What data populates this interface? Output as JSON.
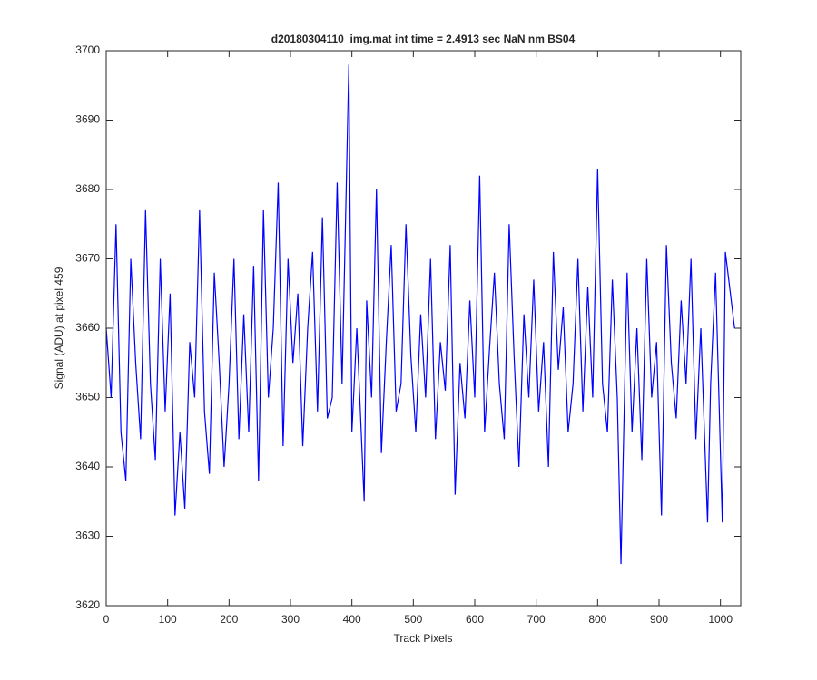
{
  "chart_data": {
    "type": "line",
    "title": "d20180304110_img.mat int time = 2.4913 sec  NaN nm BS04",
    "xlabel": "Track Pixels",
    "ylabel": "Signal (ADU) at pixel 459",
    "color": "#0000ff",
    "xlim": [
      0,
      1033
    ],
    "ylim": [
      3620,
      3700
    ],
    "xticks": [
      0,
      100,
      200,
      300,
      400,
      500,
      600,
      700,
      800,
      900,
      1000
    ],
    "yticks": [
      3620,
      3630,
      3640,
      3650,
      3660,
      3670,
      3680,
      3690,
      3700
    ],
    "x": [
      0,
      8,
      16,
      24,
      32,
      40,
      48,
      56,
      64,
      72,
      80,
      88,
      96,
      104,
      112,
      120,
      128,
      136,
      144,
      152,
      160,
      168,
      176,
      184,
      192,
      200,
      208,
      216,
      224,
      232,
      240,
      248,
      256,
      264,
      272,
      280,
      288,
      296,
      304,
      312,
      320,
      328,
      336,
      344,
      352,
      360,
      368,
      376,
      384,
      395,
      400,
      408,
      420,
      424,
      432,
      440,
      448,
      456,
      464,
      472,
      480,
      488,
      496,
      504,
      512,
      520,
      528,
      536,
      544,
      552,
      560,
      568,
      576,
      584,
      592,
      600,
      608,
      616,
      624,
      632,
      640,
      648,
      656,
      664,
      672,
      680,
      688,
      696,
      704,
      712,
      720,
      728,
      736,
      744,
      752,
      760,
      768,
      776,
      784,
      792,
      800,
      808,
      816,
      824,
      832,
      838,
      848,
      856,
      864,
      872,
      880,
      888,
      896,
      904,
      912,
      920,
      928,
      936,
      944,
      952,
      960,
      968,
      979,
      984,
      992,
      1003,
      1008,
      1023
    ],
    "values": [
      3660,
      3650,
      3675,
      3645,
      3638,
      3670,
      3655,
      3644,
      3677,
      3652,
      3641,
      3670,
      3648,
      3665,
      3633,
      3645,
      3634,
      3658,
      3650,
      3677,
      3648,
      3639,
      3668,
      3655,
      3640,
      3652,
      3670,
      3644,
      3662,
      3645,
      3669,
      3638,
      3677,
      3650,
      3660,
      3681,
      3643,
      3670,
      3655,
      3665,
      3643,
      3660,
      3671,
      3648,
      3676,
      3647,
      3650,
      3681,
      3652,
      3698,
      3645,
      3660,
      3635,
      3664,
      3650,
      3680,
      3642,
      3658,
      3672,
      3648,
      3652,
      3675,
      3656,
      3645,
      3662,
      3650,
      3670,
      3644,
      3658,
      3651,
      3672,
      3636,
      3655,
      3647,
      3664,
      3650,
      3682,
      3645,
      3657,
      3668,
      3652,
      3644,
      3675,
      3656,
      3640,
      3662,
      3650,
      3667,
      3648,
      3658,
      3640,
      3671,
      3654,
      3663,
      3645,
      3652,
      3670,
      3648,
      3666,
      3650,
      3683,
      3652,
      3645,
      3667,
      3650,
      3626,
      3668,
      3645,
      3660,
      3641,
      3670,
      3650,
      3658,
      3633,
      3672,
      3655,
      3647,
      3664,
      3652,
      3670,
      3644,
      3660,
      3632,
      3652,
      3668,
      3632,
      3671,
      3660
    ]
  }
}
